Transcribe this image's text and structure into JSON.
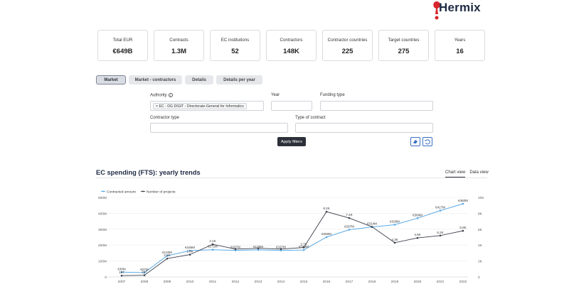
{
  "brand": {
    "name": "Hermix"
  },
  "kpis": [
    {
      "label": "Total EUR",
      "value": "€649B"
    },
    {
      "label": "Contracts",
      "value": "1.3M"
    },
    {
      "label": "EC institutions",
      "value": "52"
    },
    {
      "label": "Contractors",
      "value": "148K"
    },
    {
      "label": "Contractor countries",
      "value": "225"
    },
    {
      "label": "Target countries",
      "value": "275"
    },
    {
      "label": "Years",
      "value": "16"
    }
  ],
  "tabs": [
    {
      "label": "Market",
      "active": true
    },
    {
      "label": "Market - contractors",
      "active": false
    },
    {
      "label": "Details",
      "active": false
    },
    {
      "label": "Details per year",
      "active": false
    }
  ],
  "filters": {
    "authority_label": "Authority",
    "authority_chip": "× EC - DG DIGIT - Directorate-General for Informatics",
    "year_label": "Year",
    "funding_type_label": "Funding type",
    "contractor_type_label": "Contractor type",
    "contract_type_label": "Type of contract",
    "apply_label": "Apply filters"
  },
  "section": {
    "title": "EC spending (FTS): yearly trends",
    "views": [
      "Chart view",
      "Data view"
    ]
  },
  "chart_data": {
    "type": "line",
    "x": [
      "2007",
      "2008",
      "2009",
      "2010",
      "2011",
      "2012",
      "2013",
      "2014",
      "2015",
      "2016",
      "2017",
      "2018",
      "2019",
      "2020",
      "2021",
      "2022"
    ],
    "series": [
      {
        "name": "Contracted amount",
        "axis": "left",
        "color": "#5aa9e6",
        "values": [
          30,
          27,
          133,
          165,
          171,
          167,
          170,
          167,
          169,
          250,
          297,
          314,
          328,
          369,
          417,
          460
        ],
        "labels": [
          "€30M",
          "€27M",
          "€133M",
          "€165M",
          "€171M",
          "€167M",
          "€170M",
          "€167M",
          "€169M",
          "€250M",
          "€297M",
          "€314M",
          "€328M",
          "€369M",
          "€417M",
          "€460M"
        ]
      },
      {
        "name": "Number of projects",
        "axis": "right",
        "color": "#3a3f4a",
        "values": [
          157,
          207,
          2300,
          2800,
          4100,
          3500,
          3600,
          3500,
          3700,
          8200,
          7400,
          6300,
          4300,
          4900,
          5200,
          5800
        ],
        "labels": [
          "157",
          "207",
          "2.3K",
          "2.8K",
          "4.1K",
          "",
          "",
          "",
          "3.7K",
          "8.2K",
          "7.4K",
          "",
          "4.3K",
          "4.9K",
          "5.2K",
          "5.8K"
        ]
      }
    ],
    "y_left": {
      "ticks": [
        "0",
        "100M",
        "200M",
        "300M",
        "400M",
        "500M"
      ],
      "range": [
        0,
        500
      ]
    },
    "y_right": {
      "ticks": [
        "0",
        "2K",
        "4K",
        "6K",
        "8K",
        "10K"
      ],
      "range": [
        0,
        10000
      ]
    },
    "legend": "top-left",
    "grid": true
  }
}
